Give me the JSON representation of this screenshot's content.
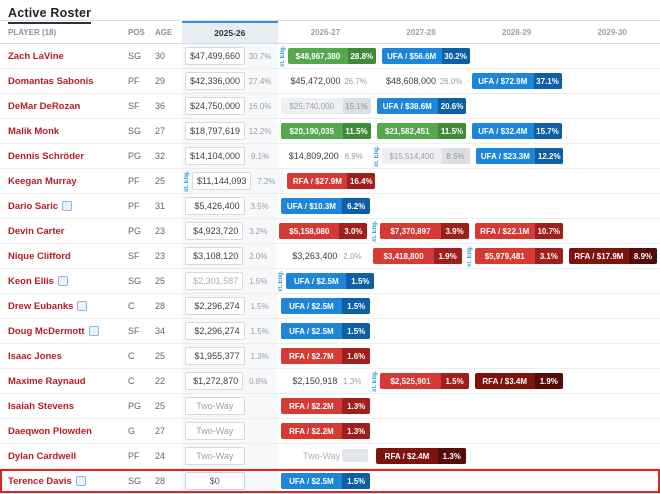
{
  "page": {
    "title": "Active Roster"
  },
  "columns": {
    "player": "PLAYER (18)",
    "pos": "POS",
    "age": "AGE",
    "seasons": [
      "2025-26",
      "2026-27",
      "2027-28",
      "2028-29",
      "2029-30"
    ]
  },
  "labels": {
    "ext": "xt. Elig.",
    "two_way": "Two-Way"
  },
  "colors": {
    "badge_green": "#55a84c",
    "badge_green_dark": "#3f8a37",
    "badge_blue": "#1d86d8",
    "badge_blue_dark": "#0e5fa4",
    "badge_red": "#d63a35",
    "badge_red_dark": "#9e1f1b",
    "badge_maroon": "#7e130e",
    "badge_maroon_dark": "#560b07",
    "badge_gray": "#edeff2",
    "badge_gray_dark": "#dce0e5",
    "link_red": "#b71c25",
    "ext_blue": "#2a9fd8",
    "highlight_red": "#e0231e",
    "header_accent_blue": "#3d8fd1"
  },
  "players": [
    {
      "name": "Zach LaVine",
      "pos": "SG",
      "age": "30",
      "s": [
        {
          "t": "box",
          "v": "$47,499,660",
          "p": "30.7%"
        },
        {
          "t": "badge",
          "c": "green",
          "v": "$48,967,380",
          "p": "28.8%",
          "ext": true
        },
        {
          "t": "badge",
          "c": "blue",
          "v": "UFA / $56.6M",
          "p": "30.2%"
        },
        null,
        null
      ]
    },
    {
      "name": "Domantas Sabonis",
      "pos": "PF",
      "age": "29",
      "s": [
        {
          "t": "box",
          "v": "$42,336,000",
          "p": "27.4%"
        },
        {
          "t": "plain",
          "v": "$45,472,000",
          "p": "26.7%"
        },
        {
          "t": "plain",
          "v": "$48,608,000",
          "p": "26.0%"
        },
        {
          "t": "badge",
          "c": "blue",
          "v": "UFA / $72.9M",
          "p": "37.1%"
        },
        null
      ]
    },
    {
      "name": "DeMar DeRozan",
      "pos": "SF",
      "age": "36",
      "s": [
        {
          "t": "box",
          "v": "$24,750,000",
          "p": "16.0%"
        },
        {
          "t": "badge",
          "c": "gray",
          "v": "$25,740,000",
          "p": "15.1%"
        },
        {
          "t": "badge",
          "c": "blue",
          "v": "UFA / $38.6M",
          "p": "20.6%"
        },
        null,
        null
      ]
    },
    {
      "name": "Malik Monk",
      "pos": "SG",
      "age": "27",
      "s": [
        {
          "t": "box",
          "v": "$18,797,619",
          "p": "12.2%"
        },
        {
          "t": "badge",
          "c": "green",
          "v": "$20,190,035",
          "p": "11.5%"
        },
        {
          "t": "badge",
          "c": "green",
          "v": "$21,582,451",
          "p": "11.5%"
        },
        {
          "t": "badge",
          "c": "blue",
          "v": "UFA / $32.4M",
          "p": "15.7%"
        },
        null
      ]
    },
    {
      "name": "Dennis Schröder",
      "pos": "PG",
      "age": "32",
      "s": [
        {
          "t": "box",
          "v": "$14,104,000",
          "p": "9.1%"
        },
        {
          "t": "plain",
          "v": "$14,809,200",
          "p": "8.9%"
        },
        {
          "t": "badge",
          "c": "gray",
          "v": "$15,514,400",
          "p": "8.5%",
          "ext": true
        },
        {
          "t": "badge",
          "c": "blue",
          "v": "UFA / $23.3M",
          "p": "12.2%"
        },
        null
      ]
    },
    {
      "name": "Keegan Murray",
      "pos": "PF",
      "age": "25",
      "s": [
        {
          "t": "box",
          "v": "$11,144,093",
          "p": "7.2%",
          "ext": true
        },
        {
          "t": "badge",
          "c": "red",
          "v": "RFA / $27.9M",
          "p": "16.4%"
        },
        null,
        null,
        null
      ]
    },
    {
      "name": "Dario Saric",
      "icon": true,
      "pos": "PF",
      "age": "31",
      "s": [
        {
          "t": "box",
          "v": "$5,426,400",
          "p": "3.5%"
        },
        {
          "t": "badge",
          "c": "blue",
          "v": "UFA / $10.3M",
          "p": "6.2%"
        },
        null,
        null,
        null
      ]
    },
    {
      "name": "Devin Carter",
      "pos": "PG",
      "age": "23",
      "s": [
        {
          "t": "box",
          "v": "$4,923,720",
          "p": "3.2%"
        },
        {
          "t": "badge",
          "c": "red",
          "v": "$5,158,080",
          "p": "3.0%"
        },
        {
          "t": "badge",
          "c": "red",
          "v": "$7,370,897",
          "p": "3.9%",
          "ext": true
        },
        {
          "t": "badge",
          "c": "red",
          "v": "RFA / $22.1M",
          "p": "10.7%"
        },
        null
      ]
    },
    {
      "name": "Nique Clifford",
      "pos": "SF",
      "age": "23",
      "s": [
        {
          "t": "box",
          "v": "$3,108,120",
          "p": "2.0%"
        },
        {
          "t": "plain",
          "v": "$3,263,400",
          "p": "2.0%"
        },
        {
          "t": "badge",
          "c": "red",
          "v": "$3,418,800",
          "p": "1.9%"
        },
        {
          "t": "badge",
          "c": "red",
          "v": "$5,979,481",
          "p": "3.1%",
          "ext": true
        },
        {
          "t": "badge",
          "c": "maroon",
          "v": "RFA / $17.9M",
          "p": "8.9%"
        }
      ]
    },
    {
      "name": "Keon Ellis",
      "icon": true,
      "pos": "SG",
      "age": "25",
      "s": [
        {
          "t": "box",
          "muted": true,
          "v": "$2,301,587",
          "p": "1.5%"
        },
        {
          "t": "badge",
          "c": "blue",
          "v": "UFA / $2.5M",
          "p": "1.5%",
          "ext": true
        },
        null,
        null,
        null
      ]
    },
    {
      "name": "Drew Eubanks",
      "icon": true,
      "pos": "C",
      "age": "28",
      "s": [
        {
          "t": "box",
          "v": "$2,296,274",
          "p": "1.5%"
        },
        {
          "t": "badge",
          "c": "blue",
          "v": "UFA / $2.5M",
          "p": "1.5%"
        },
        null,
        null,
        null
      ]
    },
    {
      "name": "Doug McDermott",
      "icon": true,
      "pos": "SF",
      "age": "34",
      "s": [
        {
          "t": "box",
          "v": "$2,296,274",
          "p": "1.5%"
        },
        {
          "t": "badge",
          "c": "blue",
          "v": "UFA / $2.5M",
          "p": "1.5%"
        },
        null,
        null,
        null
      ]
    },
    {
      "name": "Isaac Jones",
      "pos": "C",
      "age": "25",
      "s": [
        {
          "t": "box",
          "v": "$1,955,377",
          "p": "1.3%"
        },
        {
          "t": "badge",
          "c": "red",
          "v": "RFA / $2.7M",
          "p": "1.6%"
        },
        null,
        null,
        null
      ]
    },
    {
      "name": "Maxime Raynaud",
      "pos": "C",
      "age": "22",
      "s": [
        {
          "t": "box",
          "v": "$1,272,870",
          "p": "0.8%"
        },
        {
          "t": "plain",
          "v": "$2,150,918",
          "p": "1.3%"
        },
        {
          "t": "badge",
          "c": "red",
          "v": "$2,525,901",
          "p": "1.5%",
          "ext": true
        },
        {
          "t": "badge",
          "c": "maroon",
          "v": "RFA / $3.4M",
          "p": "1.9%"
        },
        null
      ]
    },
    {
      "name": "Isaiah Stevens",
      "pos": "PG",
      "age": "25",
      "s": [
        {
          "t": "tw",
          "v": "Two-Way"
        },
        {
          "t": "badge",
          "c": "red",
          "v": "RFA / $2.2M",
          "p": "1.3%"
        },
        null,
        null,
        null
      ]
    },
    {
      "name": "Daeqwon Plowden",
      "pos": "G",
      "age": "27",
      "s": [
        {
          "t": "tw",
          "v": "Two-Way"
        },
        {
          "t": "badge",
          "c": "red",
          "v": "RFA / $2.2M",
          "p": "1.3%"
        },
        null,
        null,
        null
      ]
    },
    {
      "name": "Dylan Cardwell",
      "pos": "PF",
      "age": "24",
      "s": [
        {
          "t": "tw",
          "v": "Two-Way"
        },
        {
          "t": "twp",
          "v": "Two-Way"
        },
        {
          "t": "badge",
          "c": "maroon",
          "v": "RFA / $2.4M",
          "p": "1.3%"
        },
        null,
        null
      ]
    },
    {
      "name": "Terence Davis",
      "icon": true,
      "highlight": true,
      "pos": "SG",
      "age": "28",
      "s": [
        {
          "t": "input",
          "v": "$0"
        },
        {
          "t": "badge",
          "c": "blue",
          "v": "UFA / $2.5M",
          "p": "1.5%"
        },
        null,
        null,
        null
      ]
    }
  ]
}
